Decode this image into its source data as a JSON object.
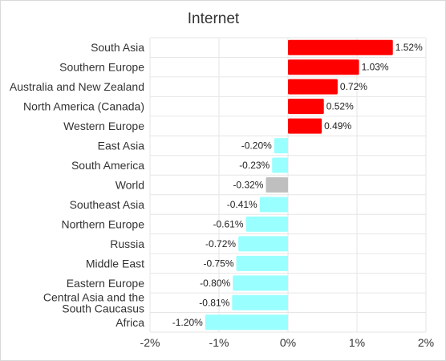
{
  "chart_data": {
    "type": "bar",
    "orientation": "horizontal",
    "title": "Internet",
    "xlabel": "",
    "ylabel": "",
    "xlim": [
      -2,
      2
    ],
    "x_ticks": [
      -2,
      -1,
      0,
      1,
      2
    ],
    "x_tick_labels": [
      "-2%",
      "-1%",
      "0%",
      "1%",
      "2%"
    ],
    "grid": true,
    "legend": "none",
    "categories": [
      "South Asia",
      "Southern Europe",
      "Australia and New Zealand",
      "North America (Canada)",
      "Western Europe",
      "East Asia",
      "South America",
      "World",
      "Southeast Asia",
      "Northern Europe",
      "Russia",
      "Middle East",
      "Eastern Europe",
      "Central Asia and the South Caucasus",
      "Africa"
    ],
    "category_lines": [
      [
        "South Asia"
      ],
      [
        "Southern Europe"
      ],
      [
        "Australia and New Zealand"
      ],
      [
        "North America (Canada)"
      ],
      [
        "Western Europe"
      ],
      [
        "East Asia"
      ],
      [
        "South America"
      ],
      [
        "World"
      ],
      [
        "Southeast Asia"
      ],
      [
        "Northern Europe"
      ],
      [
        "Russia"
      ],
      [
        "Middle East"
      ],
      [
        "Eastern Europe"
      ],
      [
        "Central Asia and the",
        "South Caucasus"
      ],
      [
        "Africa"
      ]
    ],
    "values": [
      1.52,
      1.03,
      0.72,
      0.52,
      0.49,
      -0.2,
      -0.23,
      -0.32,
      -0.41,
      -0.61,
      -0.72,
      -0.75,
      -0.8,
      -0.81,
      -1.2
    ],
    "data_labels": [
      "1.52%",
      "1.03%",
      "0.72%",
      "0.52%",
      "0.49%",
      "-0.20%",
      "-0.23%",
      "-0.32%",
      "-0.41%",
      "-0.61%",
      "-0.72%",
      "-0.75%",
      "-0.80%",
      "-0.81%",
      "-1.20%"
    ],
    "colors": {
      "positive": "#ff0000",
      "negative": "#99ffff",
      "highlight": "#bfbfbf",
      "grid": "#e6e6e6"
    },
    "highlight_category": "World"
  }
}
